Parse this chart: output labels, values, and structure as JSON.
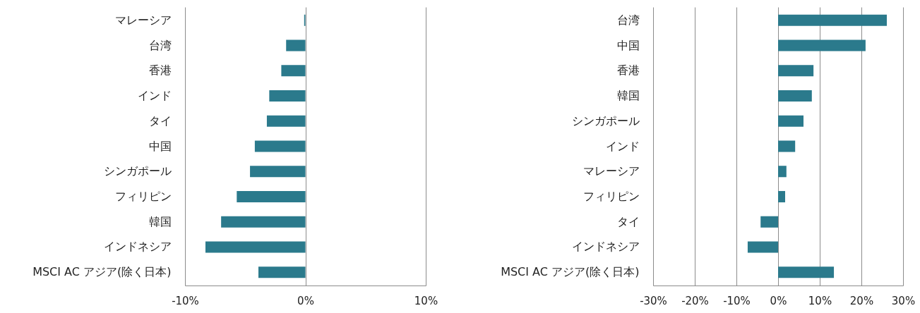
{
  "chart_data": [
    {
      "type": "bar",
      "orientation": "horizontal",
      "categories": [
        "マレーシア",
        "台湾",
        "香港",
        "インド",
        "タイ",
        "中国",
        "シンガポール",
        "フィリピン",
        "韓国",
        "インドネシア",
        "MSCI AC アジア(除く日本)"
      ],
      "values": [
        -0.1,
        -1.6,
        -2.0,
        -3.0,
        -3.2,
        -4.2,
        -4.6,
        -5.7,
        -7.0,
        -8.3,
        -3.9
      ],
      "color": "#2b7a8c",
      "xlim": [
        -10,
        10
      ],
      "xticks": [
        {
          "value": -10,
          "label": "-10%"
        },
        {
          "value": 0,
          "label": "0%"
        },
        {
          "value": 10,
          "label": "10%"
        }
      ],
      "grid": "x"
    },
    {
      "type": "bar",
      "orientation": "horizontal",
      "categories": [
        "台湾",
        "中国",
        "香港",
        "韓国",
        "シンガポール",
        "インド",
        "マレーシア",
        "フィリピン",
        "タイ",
        "インドネシア",
        "MSCI AC アジア(除く日本)"
      ],
      "values": [
        26.1,
        21.0,
        8.5,
        8.1,
        6.1,
        4.1,
        2.0,
        1.7,
        -4.2,
        -7.3,
        13.4
      ],
      "color": "#2b7a8c",
      "xlim": [
        -30,
        30
      ],
      "xticks": [
        {
          "value": -30,
          "label": "-30%"
        },
        {
          "value": -20,
          "label": "-20%"
        },
        {
          "value": -10,
          "label": "-10%"
        },
        {
          "value": 0,
          "label": "0%"
        },
        {
          "value": 10,
          "label": "10%"
        },
        {
          "value": 20,
          "label": "20%"
        },
        {
          "value": 30,
          "label": "30%"
        }
      ],
      "grid": "x"
    }
  ]
}
